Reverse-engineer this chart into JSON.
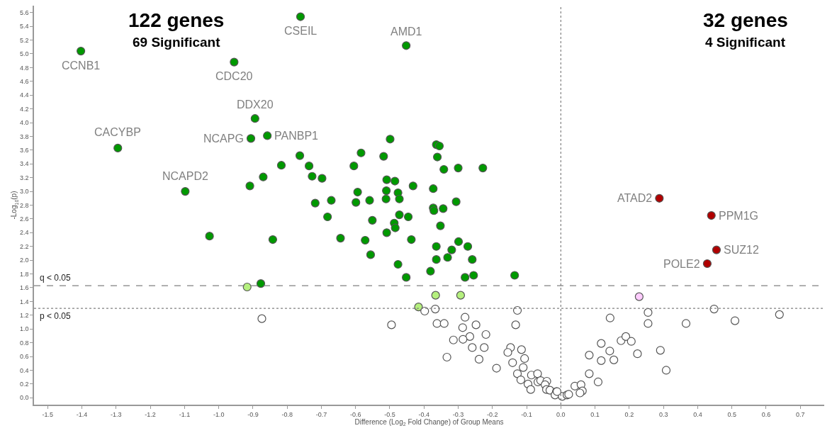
{
  "chart_data": {
    "type": "scatter",
    "xlabel": "Difference (Log$_{2}$ Fold Change) of Group Means",
    "ylabel": "-Log$_{10}$(p)",
    "marker": "circle",
    "xlim": [
      -1.54,
      0.77
    ],
    "ylim": [
      -0.1,
      5.7
    ],
    "xticks": [
      -1.5,
      -1.4,
      -1.3,
      -1.2,
      -1.1,
      {
        "value": -1.0,
        "label": "-1.0"
      },
      -0.9,
      -0.8,
      -0.7,
      -0.6,
      -0.5,
      -0.4,
      -0.3,
      -0.2,
      -0.1,
      {
        "value": 0.0,
        "label": "0.0"
      },
      0.1,
      0.2,
      0.3,
      0.4,
      0.5,
      0.6,
      0.7
    ],
    "yticks": [
      {
        "value": 0.0,
        "label": "0.0"
      },
      0.2,
      0.4,
      0.6,
      0.8,
      {
        "value": 1.0,
        "label": "1.0"
      },
      1.2,
      1.4,
      1.6,
      1.8,
      {
        "value": 2.0,
        "label": "2.0"
      },
      2.2,
      2.4,
      2.6,
      2.8,
      {
        "value": 3.0,
        "label": "3.0"
      },
      3.2,
      3.4,
      3.6,
      3.8,
      {
        "value": 4.0,
        "label": "4.0"
      },
      4.2,
      4.4,
      4.6,
      4.8,
      {
        "value": 5.0,
        "label": "5.0"
      },
      5.2,
      5.4,
      5.6
    ],
    "ref_lines": [
      {
        "axis": "y",
        "value": 1.63,
        "label": "q < 0.05",
        "color": "#808080",
        "line_style": "dashed"
      },
      {
        "axis": "y",
        "value": 1.3,
        "label": "p < 0.05",
        "color": "#808080",
        "line_style": "dotted"
      },
      {
        "axis": "x",
        "value": 0,
        "color": "#808080",
        "line_style": "dotted"
      }
    ],
    "series": [
      {
        "color": "#009900",
        "x": [
          -1.403,
          -0.761,
          -0.452,
          -0.955,
          -0.894,
          -0.906,
          -0.858,
          -1.295,
          -1.098,
          -1.027,
          -0.499,
          -0.364,
          -0.355,
          -0.763,
          -0.584,
          -0.518,
          -0.361,
          -0.817,
          -0.736,
          -0.605,
          -0.342,
          -0.3,
          -0.228,
          -0.87,
          -0.727,
          -0.698,
          -0.909,
          -0.509,
          -0.485,
          -0.432,
          -0.373,
          -0.594,
          -0.51,
          -0.476,
          -0.718,
          -0.671,
          -0.599,
          -0.559,
          -0.511,
          -0.472,
          -0.306,
          -0.373,
          -0.371,
          -0.344,
          -0.682,
          -0.472,
          -0.446,
          -0.551,
          -0.487,
          -0.484,
          -0.352,
          -0.509,
          -0.842,
          -0.644,
          -0.572,
          -0.437,
          -0.299,
          -0.364,
          -0.272,
          -0.319,
          -0.556,
          -0.331,
          -0.364,
          -0.259,
          -0.476,
          -0.381,
          -0.452,
          -0.28,
          -0.255,
          -0.135,
          -0.877
        ],
        "values": [
          5.04,
          5.54,
          5.12,
          4.88,
          4.06,
          3.77,
          3.81,
          3.63,
          3.0,
          2.35,
          3.76,
          3.68,
          3.66,
          3.52,
          3.56,
          3.51,
          3.5,
          3.38,
          3.37,
          3.37,
          3.32,
          3.34,
          3.34,
          3.21,
          3.22,
          3.19,
          3.08,
          3.17,
          3.15,
          3.08,
          3.04,
          2.99,
          3.01,
          2.98,
          2.83,
          2.87,
          2.84,
          2.87,
          2.89,
          2.89,
          2.85,
          2.76,
          2.72,
          2.75,
          2.63,
          2.66,
          2.63,
          2.58,
          2.54,
          2.47,
          2.5,
          2.4,
          2.3,
          2.32,
          2.29,
          2.3,
          2.27,
          2.2,
          2.2,
          2.15,
          2.08,
          2.04,
          2.01,
          2.01,
          1.94,
          1.84,
          1.75,
          1.75,
          1.78,
          1.78,
          1.66
        ]
      },
      {
        "color": "#b5f07e",
        "x": [
          -0.917,
          -0.366,
          -0.293,
          -0.416
        ],
        "values": [
          1.61,
          1.49,
          1.49,
          1.32
        ]
      },
      {
        "color": "#ffffff",
        "x": [
          -0.398,
          -0.367,
          -0.127,
          -0.495,
          -0.362,
          -0.341,
          -0.28,
          -0.287,
          -0.248,
          -0.132,
          -0.266,
          -0.286,
          -0.314,
          -0.219,
          -0.259,
          -0.224,
          -0.333,
          -0.239,
          -0.188,
          -0.147,
          -0.155,
          -0.115,
          -0.106,
          -0.141,
          -0.11,
          -0.127,
          -0.117,
          -0.086,
          -0.068,
          -0.096,
          -0.088,
          -0.067,
          -0.059,
          -0.041,
          -0.046,
          -0.042,
          -0.032,
          -0.013,
          -0.017,
          0.004,
          0.018,
          -0.874,
          -0.011,
          0.023,
          0.041,
          0.059,
          0.063,
          0.056,
          0.083,
          0.109,
          0.083,
          0.118,
          0.118,
          0.143,
          0.155,
          0.144,
          0.176,
          0.19,
          0.206,
          0.224,
          0.255,
          0.255,
          0.291,
          0.308,
          0.366,
          0.448,
          0.509,
          0.639
        ],
        "values": [
          1.26,
          1.29,
          1.27,
          1.06,
          1.08,
          1.08,
          1.17,
          1.02,
          1.06,
          1.06,
          0.89,
          0.85,
          0.84,
          0.92,
          0.73,
          0.73,
          0.59,
          0.56,
          0.43,
          0.73,
          0.66,
          0.7,
          0.57,
          0.51,
          0.44,
          0.35,
          0.26,
          0.33,
          0.35,
          0.2,
          0.12,
          0.23,
          0.25,
          0.24,
          0.19,
          0.12,
          0.11,
          0.09,
          0.04,
          0.02,
          0.04,
          1.15,
          0.09,
          0.05,
          0.17,
          0.19,
          0.1,
          0.07,
          0.35,
          0.23,
          0.62,
          0.54,
          0.79,
          0.68,
          0.55,
          1.16,
          0.83,
          0.89,
          0.82,
          0.64,
          1.24,
          1.08,
          0.69,
          0.4,
          1.08,
          1.29,
          1.12,
          1.21
        ]
      },
      {
        "color": "#ffccff",
        "x": [
          0.229
        ],
        "values": [
          1.47
        ]
      },
      {
        "color": "#b00000",
        "x": [
          0.288,
          0.44,
          0.455,
          0.428
        ],
        "values": [
          2.9,
          2.65,
          2.15,
          1.95
        ]
      }
    ],
    "annotations": [
      "122 genes",
      "69 Significant",
      "32 genes",
      "4 Significant",
      {
        "text": "CCNB1",
        "x": -1.403,
        "y": 5.04
      },
      {
        "text": "CSEIL",
        "x": -0.761,
        "y": 5.54
      },
      {
        "text": "AMD1",
        "x": -0.452,
        "y": 5.12
      },
      {
        "text": "CDC20",
        "x": -0.955,
        "y": 4.88
      },
      {
        "text": "DDX20",
        "x": -0.894,
        "y": 4.06
      },
      {
        "text": "NCAPG",
        "x": -0.906,
        "y": 3.77
      },
      {
        "text": "PANBP1",
        "x": -0.858,
        "y": 3.81
      },
      {
        "text": "CACYBP",
        "x": -1.295,
        "y": 3.63
      },
      {
        "text": "NCAPD2",
        "x": -1.098,
        "y": 3.0
      },
      {
        "text": "ATAD2",
        "x": 0.288,
        "y": 2.9
      },
      {
        "text": "PPM1G",
        "x": 0.44,
        "y": 2.65
      },
      {
        "text": "SUZ12",
        "x": 0.455,
        "y": 2.15
      },
      {
        "text": "POLE2",
        "x": 0.428,
        "y": 1.95
      }
    ]
  }
}
